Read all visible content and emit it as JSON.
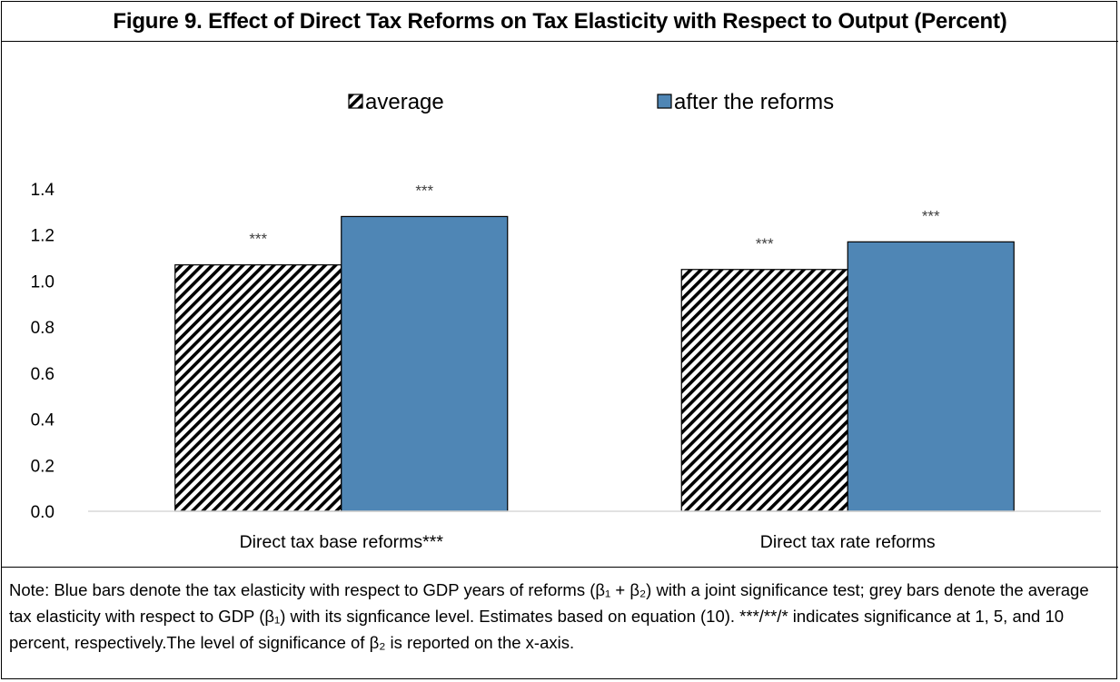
{
  "figure": {
    "title": "Figure 9. Effect of Direct Tax Reforms on Tax Elasticity with Respect to Output (Percent)",
    "note": "Note: Blue bars denote the tax elasticity with respect to GDP years of reforms (β₁ + β₂) with a joint significance test; grey bars denote the average tax elasticity with respect to GDP (β₁) with its signficance level. Estimates based on equation (10). ***/**/* indicates significance at 1, 5, and 10 percent, respectively.The level of significance of β₂ is reported on the x-axis."
  },
  "colors": {
    "after": "#4f86b5",
    "bar_border": "#000000",
    "hatch": "#000000",
    "axis": "#d9d9d9"
  },
  "chart_data": {
    "type": "bar",
    "categories": [
      "Direct tax base reforms***",
      "Direct tax rate reforms"
    ],
    "series": [
      {
        "name": "average",
        "values": [
          1.07,
          1.05
        ],
        "labels": [
          "***",
          "***"
        ],
        "fill": "hatch"
      },
      {
        "name": "after the reforms",
        "values": [
          1.28,
          1.17
        ],
        "labels": [
          "***",
          "***"
        ],
        "fill": "solid"
      }
    ],
    "ylim": [
      0,
      1.4
    ],
    "yticks": [
      "0.0",
      "0.2",
      "0.4",
      "0.6",
      "0.8",
      "1.0",
      "1.2",
      "1.4"
    ],
    "legend_position": "top-center",
    "grid": false
  }
}
